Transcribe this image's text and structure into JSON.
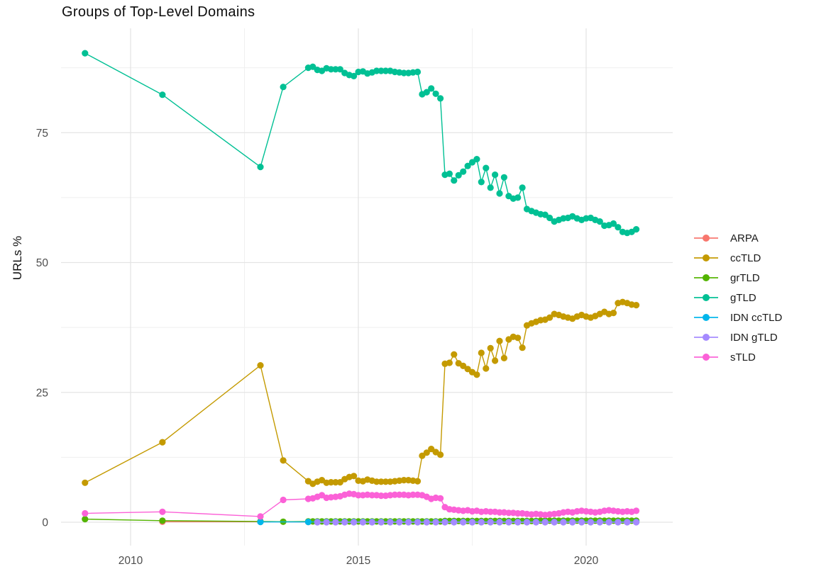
{
  "chart_data": {
    "type": "line",
    "title": "Groups of Top-Level Domains",
    "xlabel": "",
    "ylabel": "URLs %",
    "x_unit": "year",
    "xlim": [
      2008.45,
      2021.9
    ],
    "ylim": [
      -4.6,
      95.2
    ],
    "x_ticks": [
      2010,
      2015,
      2020
    ],
    "x_tick_labels": [
      "2010",
      "2015",
      "2020"
    ],
    "x_minor_ticks": [
      2012.5,
      2017.5
    ],
    "y_ticks": [
      0,
      25,
      50,
      75
    ],
    "y_tick_labels": [
      "0",
      "25",
      "50",
      "75"
    ],
    "y_minor_ticks": [
      12.5,
      37.5,
      62.5,
      87.5
    ],
    "grid": true,
    "legend_position": "right",
    "x_early": [
      2009.0,
      2010.7,
      2012.85,
      2013.35
    ],
    "x_dense": [
      2013.9,
      2014.0,
      2014.1,
      2014.2,
      2014.3,
      2014.4,
      2014.5,
      2014.6,
      2014.7,
      2014.8,
      2014.9,
      2015.0,
      2015.1,
      2015.2,
      2015.3,
      2015.4,
      2015.5,
      2015.6,
      2015.7,
      2015.8,
      2015.9,
      2016.0,
      2016.1,
      2016.2,
      2016.3,
      2016.4,
      2016.5,
      2016.6,
      2016.7,
      2016.8,
      2016.9,
      2017.0,
      2017.1,
      2017.2,
      2017.3,
      2017.4,
      2017.5,
      2017.6,
      2017.7,
      2017.8,
      2017.9,
      2018.0,
      2018.1,
      2018.2,
      2018.3,
      2018.4,
      2018.5,
      2018.6,
      2018.7,
      2018.8,
      2018.9,
      2019.0,
      2019.1,
      2019.2,
      2019.3,
      2019.4,
      2019.5,
      2019.6,
      2019.7,
      2019.8,
      2019.9,
      2020.0,
      2020.1,
      2020.2,
      2020.3,
      2020.4,
      2020.5,
      2020.6,
      2020.7,
      2020.8,
      2020.9,
      2021.0,
      2021.1
    ],
    "series": [
      {
        "name": "ARPA",
        "color": "#F8766D",
        "x": [
          2010.7,
          2012.85,
          2013.9,
          2014.1,
          2014.3,
          2014.5,
          2014.7,
          2014.9,
          2015.1,
          2015.3,
          2015.5,
          2015.7,
          2015.9,
          2016.1,
          2016.3,
          2016.5,
          2016.7,
          2016.9,
          2017.1,
          2017.3,
          2017.5,
          2017.7,
          2017.9,
          2018.1,
          2018.3,
          2018.5,
          2018.7,
          2018.9,
          2019.1,
          2019.3,
          2019.5,
          2019.7,
          2019.9,
          2020.1,
          2020.3,
          2020.5,
          2020.7,
          2020.9,
          2021.1
        ],
        "y": [
          0.1,
          0.1,
          0.05,
          0.05,
          0.05,
          0.05,
          0.05,
          0.05,
          0.05,
          0.05,
          0.05,
          0.05,
          0.05,
          0.05,
          0.05,
          0.05,
          0.05,
          0.05,
          0.05,
          0.05,
          0.05,
          0.05,
          0.05,
          0.05,
          0.05,
          0.05,
          0.05,
          0.05,
          0.05,
          0.05,
          0.05,
          0.05,
          0.05,
          0.05,
          0.05,
          0.05,
          0.05,
          0.05,
          0.05
        ]
      },
      {
        "name": "ccTLD",
        "color": "#C49A00",
        "y_early": [
          7.6,
          15.4,
          30.2,
          11.9
        ],
        "y_dense": [
          7.9,
          7.4,
          7.8,
          8.1,
          7.6,
          7.7,
          7.7,
          7.7,
          8.3,
          8.7,
          8.9,
          8.0,
          7.9,
          8.2,
          8.0,
          7.8,
          7.8,
          7.8,
          7.8,
          7.9,
          8.0,
          8.1,
          8.1,
          8.0,
          7.9,
          12.8,
          13.4,
          14.1,
          13.5,
          13.0,
          30.5,
          30.7,
          32.3,
          30.6,
          30.1,
          29.5,
          28.9,
          28.4,
          32.6,
          29.6,
          33.5,
          31.1,
          34.9,
          31.6,
          35.2,
          35.7,
          35.5,
          33.6,
          37.9,
          38.3,
          38.6,
          38.9,
          39.0,
          39.4,
          40.1,
          39.9,
          39.6,
          39.4,
          39.2,
          39.6,
          39.9,
          39.6,
          39.4,
          39.7,
          40.1,
          40.5,
          40.1,
          40.3,
          42.2,
          42.4,
          42.2,
          41.9,
          41.8
        ]
      },
      {
        "name": "grTLD",
        "color": "#53B400",
        "y_early": [
          0.6,
          0.3,
          0.15,
          0.1
        ],
        "y_dense": [
          0.15,
          0.15,
          0.15,
          0.15,
          0.15,
          0.15,
          0.15,
          0.15,
          0.15,
          0.15,
          0.15,
          0.15,
          0.15,
          0.15,
          0.15,
          0.15,
          0.15,
          0.15,
          0.15,
          0.15,
          0.15,
          0.15,
          0.15,
          0.15,
          0.15,
          0.15,
          0.15,
          0.15,
          0.15,
          0.15,
          0.25,
          0.25,
          0.25,
          0.25,
          0.25,
          0.25,
          0.25,
          0.25,
          0.25,
          0.25,
          0.25,
          0.25,
          0.25,
          0.25,
          0.25,
          0.25,
          0.25,
          0.25,
          0.25,
          0.25,
          0.25,
          0.3,
          0.3,
          0.3,
          0.3,
          0.3,
          0.3,
          0.3,
          0.3,
          0.3,
          0.3,
          0.3,
          0.3,
          0.3,
          0.3,
          0.3,
          0.3,
          0.3,
          0.3,
          0.3,
          0.3,
          0.3,
          0.3
        ]
      },
      {
        "name": "gTLD",
        "color": "#00C094",
        "y_early": [
          90.3,
          82.3,
          68.4,
          83.8
        ],
        "y_dense": [
          87.5,
          87.7,
          87.1,
          86.9,
          87.4,
          87.2,
          87.2,
          87.2,
          86.5,
          86.1,
          85.9,
          86.7,
          86.8,
          86.4,
          86.6,
          86.9,
          86.9,
          86.9,
          86.9,
          86.7,
          86.6,
          86.5,
          86.5,
          86.6,
          86.7,
          82.4,
          82.8,
          83.5,
          82.5,
          81.6,
          66.9,
          67.1,
          65.8,
          66.8,
          67.5,
          68.6,
          69.3,
          69.9,
          65.5,
          68.2,
          64.4,
          66.9,
          63.3,
          66.4,
          62.8,
          62.3,
          62.5,
          64.4,
          60.3,
          59.9,
          59.6,
          59.3,
          59.2,
          58.6,
          57.9,
          58.2,
          58.5,
          58.6,
          58.9,
          58.5,
          58.2,
          58.5,
          58.6,
          58.2,
          57.9,
          57.1,
          57.2,
          57.5,
          56.8,
          55.9,
          55.7,
          55.9,
          56.4
        ]
      },
      {
        "name": "IDN ccTLD",
        "color": "#00B6EB",
        "x": [
          2012.85,
          2013.9,
          2014.1,
          2014.3,
          2014.5,
          2014.7,
          2014.9,
          2015.1,
          2015.3,
          2015.5,
          2015.7,
          2015.9,
          2016.1,
          2016.3,
          2016.5,
          2016.7,
          2016.9,
          2017.1,
          2017.3,
          2017.5,
          2017.7,
          2017.9,
          2018.1,
          2018.3,
          2018.5,
          2018.7,
          2018.9,
          2019.1,
          2019.3,
          2019.5,
          2019.7,
          2019.9,
          2020.1,
          2020.3,
          2020.5,
          2020.7,
          2020.9,
          2021.1
        ],
        "y": [
          0.05,
          0.05,
          0.05,
          0.05,
          0.05,
          0.05,
          0.05,
          0.05,
          0.05,
          0.05,
          0.05,
          0.05,
          0.05,
          0.05,
          0.05,
          0.05,
          0.05,
          0.05,
          0.05,
          0.05,
          0.05,
          0.05,
          0.05,
          0.05,
          0.05,
          0.05,
          0.05,
          0.05,
          0.05,
          0.05,
          0.05,
          0.05,
          0.05,
          0.05,
          0.05,
          0.05,
          0.05,
          0.05
        ]
      },
      {
        "name": "IDN gTLD",
        "color": "#A58AFF",
        "x": [
          2014.1,
          2014.3,
          2014.5,
          2014.7,
          2014.9,
          2015.1,
          2015.3,
          2015.5,
          2015.7,
          2015.9,
          2016.1,
          2016.3,
          2016.5,
          2016.7,
          2016.9,
          2017.1,
          2017.3,
          2017.5,
          2017.7,
          2017.9,
          2018.1,
          2018.3,
          2018.5,
          2018.7,
          2018.9,
          2019.1,
          2019.3,
          2019.5,
          2019.7,
          2019.9,
          2020.1,
          2020.3,
          2020.5,
          2020.7,
          2020.9,
          2021.1
        ],
        "y": [
          0.0,
          0.0,
          0.0,
          0.0,
          0.0,
          0.0,
          0.0,
          0.0,
          0.0,
          0.0,
          0.0,
          0.0,
          0.0,
          0.0,
          0.0,
          0.0,
          0.0,
          0.0,
          0.0,
          0.0,
          0.0,
          0.0,
          0.0,
          0.0,
          0.0,
          0.0,
          0.0,
          0.0,
          0.0,
          0.0,
          0.0,
          0.0,
          0.0,
          0.0,
          0.0,
          0.0
        ]
      },
      {
        "name": "sTLD",
        "color": "#FB61D7",
        "y_early": [
          1.7,
          2.0,
          1.1,
          4.3
        ],
        "y_dense": [
          4.5,
          4.6,
          4.9,
          5.2,
          4.7,
          4.8,
          4.9,
          5.0,
          5.3,
          5.5,
          5.4,
          5.2,
          5.2,
          5.3,
          5.2,
          5.2,
          5.1,
          5.1,
          5.2,
          5.3,
          5.3,
          5.3,
          5.2,
          5.3,
          5.3,
          5.2,
          4.9,
          4.5,
          4.7,
          4.6,
          2.9,
          2.5,
          2.4,
          2.3,
          2.2,
          2.3,
          2.1,
          2.2,
          2.0,
          2.1,
          2.0,
          2.0,
          1.9,
          1.9,
          1.8,
          1.8,
          1.7,
          1.7,
          1.6,
          1.5,
          1.6,
          1.5,
          1.4,
          1.5,
          1.6,
          1.7,
          1.9,
          2.0,
          1.9,
          2.1,
          2.2,
          2.1,
          2.0,
          1.9,
          2.0,
          2.2,
          2.3,
          2.2,
          2.1,
          2.0,
          2.1,
          2.0,
          2.2
        ]
      }
    ]
  },
  "legend": {
    "items": [
      "ARPA",
      "ccTLD",
      "grTLD",
      "gTLD",
      "IDN ccTLD",
      "IDN gTLD",
      "sTLD"
    ]
  },
  "style_colors": {
    "grid_major": "#e4e4e4",
    "grid_minor": "#efefef",
    "axis_text": "#4d4d4d",
    "title_text": "#0d0d0d"
  }
}
